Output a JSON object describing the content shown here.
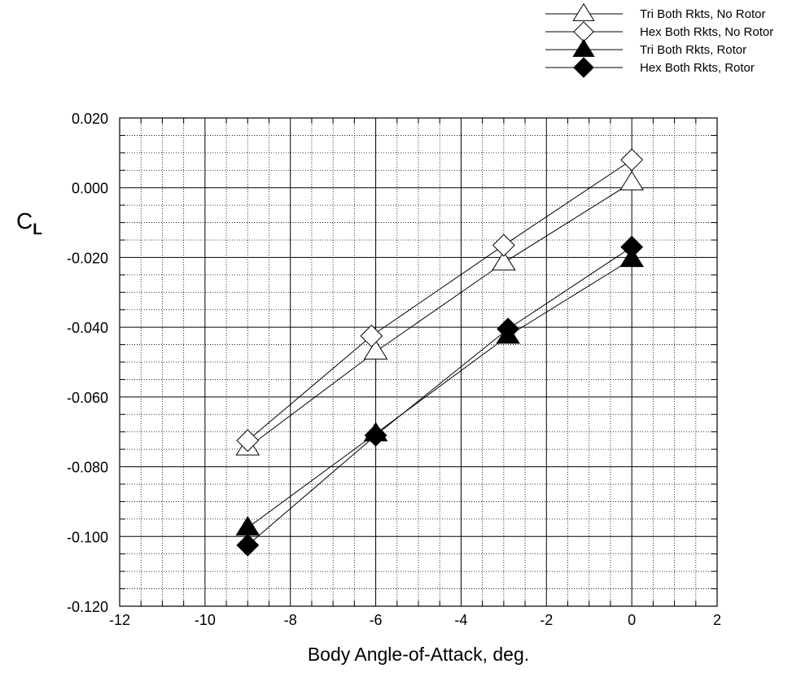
{
  "chart_data": {
    "type": "line",
    "title": "",
    "xlabel": "Body Angle-of-Attack, deg.",
    "ylabel": {
      "main": "C",
      "subscript": "L"
    },
    "xlim": [
      -12,
      2
    ],
    "ylim": [
      -0.12,
      0.02
    ],
    "x_ticks": [
      "-12",
      "-10",
      "-8",
      "-6",
      "-4",
      "-2",
      "0",
      "2"
    ],
    "y_ticks": [
      "0.020",
      "0.000",
      "-0.020",
      "-0.040",
      "-0.060",
      "-0.080",
      "-0.100",
      "-0.120"
    ],
    "grid": {
      "major": true,
      "minor": true,
      "minor_style": "dotted"
    },
    "legend_position": "top-right",
    "series": [
      {
        "name": "Tri Both Rkts, No Rotor",
        "marker": "triangle-open",
        "x": [
          -9,
          -6,
          -3,
          0
        ],
        "y": [
          -0.0745,
          -0.047,
          -0.0215,
          0.0015
        ]
      },
      {
        "name": "Hex Both Rkts, No Rotor",
        "marker": "diamond-open",
        "x": [
          -9,
          -6.1,
          -3,
          0
        ],
        "y": [
          -0.0725,
          -0.0425,
          -0.0165,
          0.008
        ]
      },
      {
        "name": "Tri Both Rkts, Rotor",
        "marker": "triangle-filled",
        "x": [
          -9,
          -6,
          -2.9,
          0
        ],
        "y": [
          -0.0975,
          -0.0705,
          -0.0425,
          -0.0205
        ]
      },
      {
        "name": "Hex Both Rkts, Rotor",
        "marker": "diamond-filled",
        "x": [
          -9,
          -6,
          -2.9,
          0
        ],
        "y": [
          -0.1025,
          -0.071,
          -0.0405,
          -0.017
        ]
      }
    ]
  }
}
